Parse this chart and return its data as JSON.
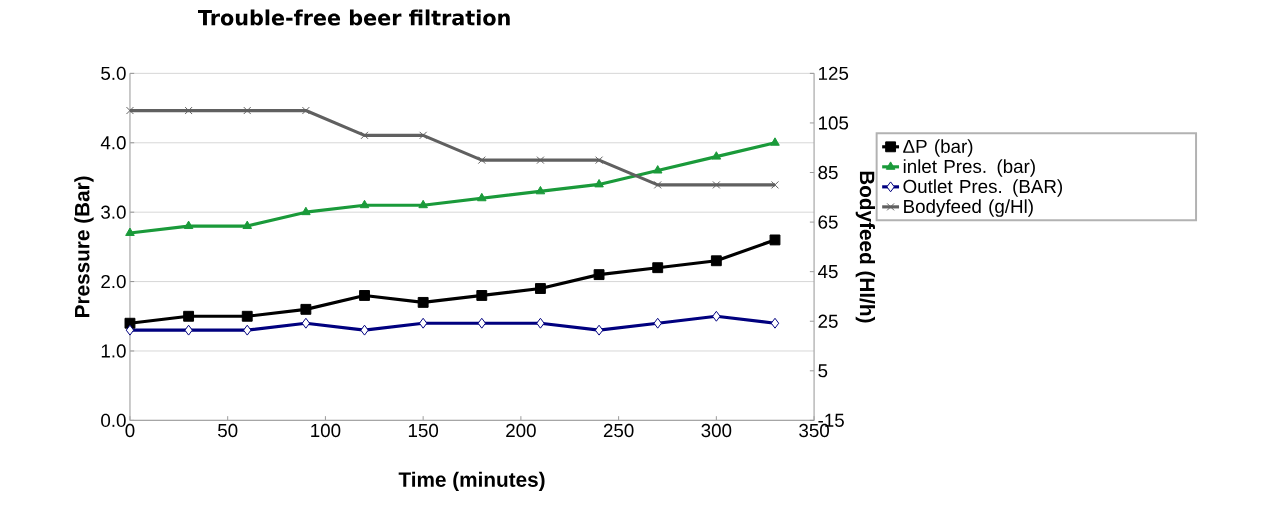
{
  "chart_data": {
    "type": "line",
    "title": "Trouble-free beer filtration",
    "xlabel": "Time (minutes)",
    "ylabel": "Pressure (Bar)",
    "y2label": "Bodyfeed (Hl/h)",
    "x": [
      0,
      30,
      60,
      90,
      120,
      150,
      180,
      210,
      240,
      270,
      300,
      330
    ],
    "series": [
      {
        "name": "ΔP (bar)",
        "color": "#000000",
        "marker": "square",
        "values": [
          1.4,
          1.5,
          1.5,
          1.6,
          1.8,
          1.7,
          1.8,
          1.9,
          2.1,
          2.2,
          2.3,
          2.6
        ]
      },
      {
        "name": "inlet Pres. (bar)",
        "color": "#1a9a3a",
        "marker": "triangle",
        "values": [
          2.7,
          2.8,
          2.8,
          3.0,
          3.1,
          3.1,
          3.2,
          3.3,
          3.4,
          3.6,
          3.8,
          4.0
        ]
      },
      {
        "name": "Outlet Pres. (BAR)",
        "color": "#00007f",
        "marker": "diamond",
        "values": [
          1.3,
          1.3,
          1.3,
          1.4,
          1.3,
          1.4,
          1.4,
          1.4,
          1.3,
          1.4,
          1.5,
          1.4
        ]
      },
      {
        "name": "Bodyfeed (g/Hl)",
        "color": "#606060",
        "marker": "cross",
        "axis": "y2",
        "values": [
          110,
          110,
          110,
          110,
          100,
          100,
          90,
          90,
          90,
          80,
          80,
          80
        ]
      }
    ],
    "xlim": [
      0,
      350
    ],
    "xticks": [
      0,
      50,
      100,
      150,
      200,
      250,
      300,
      350
    ],
    "ylim": [
      0,
      5
    ],
    "yticks": [
      {
        "value": 0,
        "label": "0.0"
      },
      {
        "value": 1,
        "label": "1.0"
      },
      {
        "value": 2,
        "label": "2.0"
      },
      {
        "value": 3,
        "label": "3.0"
      },
      {
        "value": 4,
        "label": "4.0"
      },
      {
        "value": 5,
        "label": "5.0"
      }
    ],
    "y2lim": [
      -15,
      125
    ],
    "y2ticks": [
      -15,
      5,
      25,
      45,
      65,
      85,
      105,
      125
    ],
    "grid": "y",
    "legend": "right"
  }
}
